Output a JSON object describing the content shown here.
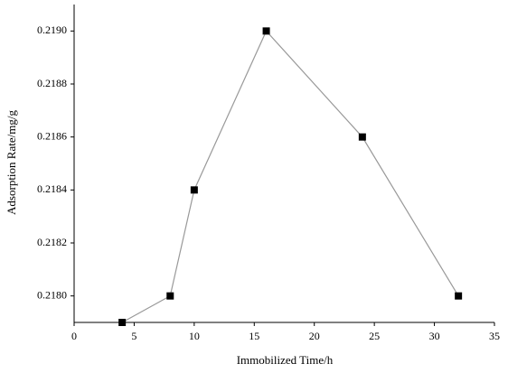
{
  "chart_data": {
    "type": "line",
    "x_label": "Immobilized Time/h",
    "y_label": "Adsorption Rate/mg/g",
    "series": [
      {
        "name": "Adsorption Rate",
        "color": "#999999",
        "marker_color": "#000000",
        "x": [
          4,
          8,
          10,
          16,
          24,
          32
        ],
        "values": [
          0.2179,
          0.218,
          0.2184,
          0.219,
          0.2186,
          0.218
        ]
      }
    ],
    "xlim": [
      0,
      35
    ],
    "xticks": [
      0,
      5,
      10,
      15,
      20,
      25,
      30,
      35
    ],
    "ylim": [
      0.2179,
      0.2191
    ],
    "yticks": [
      {
        "value": 0.218,
        "label": "0.2180"
      },
      0.2182,
      0.2184,
      0.2186,
      0.2188,
      {
        "value": 0.219,
        "label": "0.2190"
      }
    ],
    "grid": false
  }
}
